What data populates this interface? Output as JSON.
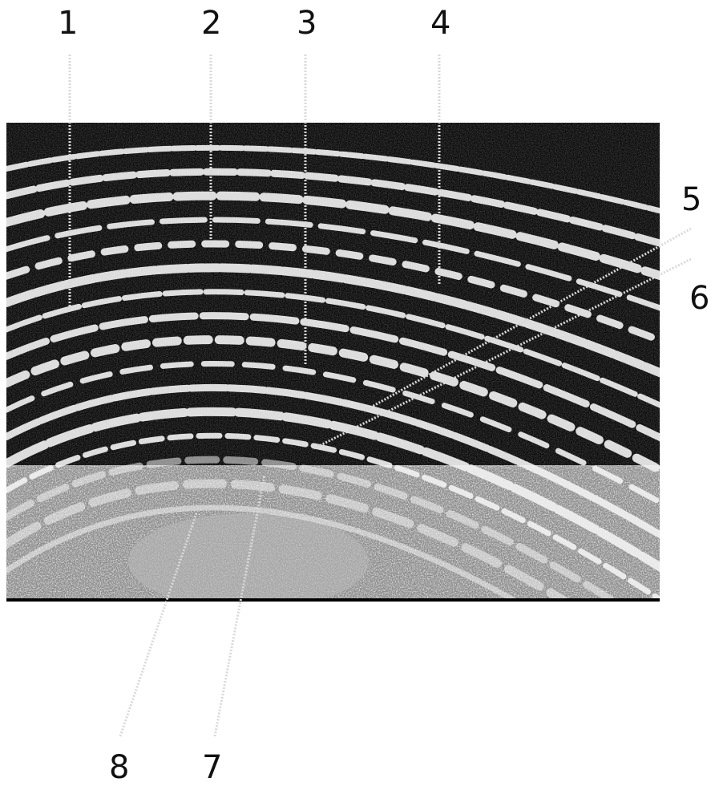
{
  "figure": {
    "labels": [
      "1",
      "2",
      "3",
      "4",
      "5",
      "6",
      "7",
      "8"
    ]
  },
  "colors": {
    "background": "#ffffff",
    "image_dark": "#060606",
    "image_light": "#f2f2f2",
    "leader_line": "#d9d9d9",
    "label_text": "#111111"
  }
}
